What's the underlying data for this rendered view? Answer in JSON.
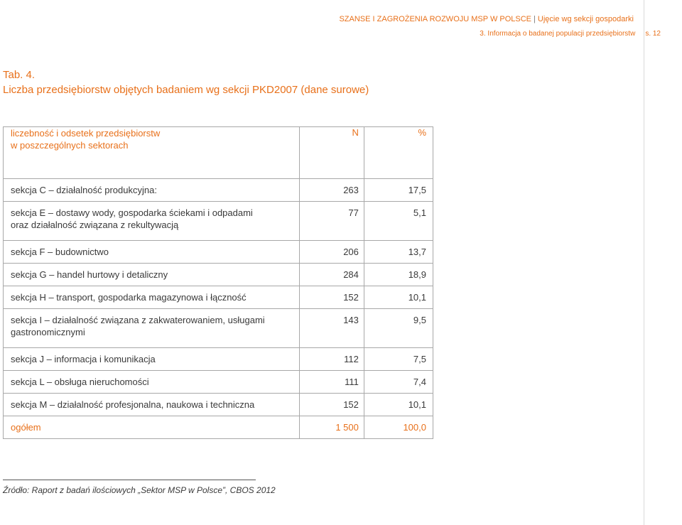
{
  "header": {
    "doc_title": "SZANSE I ZAGROŻENIA ROZWOJU MSP W POLSCE",
    "section": "Ujęcie wg sekcji gospodarki",
    "chapter": "3. Informacja o badanej populacji przedsiębiorstw",
    "page": "s. 12"
  },
  "table": {
    "number": "Tab. 4.",
    "title": "Liczba przedsiębiorstw objętych badaniem wg sekcji PKD2007 (dane surowe)",
    "col_header": {
      "label_line1": "liczebność i odsetek przedsiębiorstw",
      "label_line2": "w poszczególnych sektorach",
      "n": "N",
      "pct": "%"
    },
    "rows": [
      {
        "line1": "sekcja C – działalność produkcyjna:",
        "line2": "",
        "n": "263",
        "pct": "17,5"
      },
      {
        "line1": "sekcja E – dostawy wody, gospodarka ściekami i odpadami",
        "line2": "oraz działalność związana z rekultywacją",
        "n": "77",
        "pct": "5,1"
      },
      {
        "line1": "sekcja F – budownictwo",
        "line2": "",
        "n": "206",
        "pct": "13,7"
      },
      {
        "line1": "sekcja G – handel hurtowy i detaliczny",
        "line2": "",
        "n": "284",
        "pct": "18,9"
      },
      {
        "line1": "sekcja H – transport, gospodarka magazynowa i łączność",
        "line2": "",
        "n": "152",
        "pct": "10,1"
      },
      {
        "line1": "sekcja I – działalność związana z zakwaterowaniem, usługami",
        "line2": "gastronomicznymi",
        "n": "143",
        "pct": "9,5"
      },
      {
        "line1": "sekcja J – informacja i komunikacja",
        "line2": "",
        "n": "112",
        "pct": "7,5"
      },
      {
        "line1": "sekcja L – obsługa nieruchomości",
        "line2": "",
        "n": "111",
        "pct": "7,4"
      },
      {
        "line1": "sekcja M – działalność profesjonalna, naukowa i techniczna",
        "line2": "",
        "n": "152",
        "pct": "10,1"
      }
    ],
    "total": {
      "label": "ogółem",
      "n": "1 500",
      "pct": "100,0"
    }
  },
  "footnote": {
    "source": "Źródło: Raport z badań ilościowych „Sektor MSP w Polsce”, CBOS 2012"
  },
  "colors": {
    "accent": "#e8701a",
    "text": "#3a3a3a",
    "border": "#a8a8a8"
  }
}
